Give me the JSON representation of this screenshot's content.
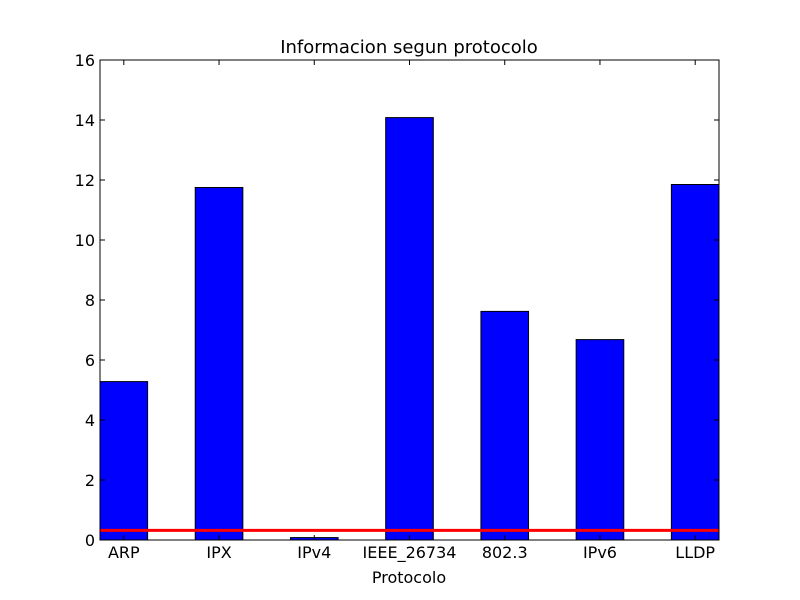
{
  "chart_data": {
    "type": "bar",
    "title": "Informacion segun protocolo",
    "xlabel": "Protocolo",
    "ylabel": "",
    "categories": [
      "ARP",
      "IPX",
      "IPv4",
      "IEEE_26734",
      "802.3",
      "IPv6",
      "LLDP"
    ],
    "values": [
      5.28,
      11.75,
      0.08,
      14.08,
      7.62,
      6.68,
      11.85
    ],
    "ylim": [
      0,
      16
    ],
    "yticks": [
      "0",
      "2",
      "4",
      "6",
      "8",
      "10",
      "12",
      "14",
      "16"
    ],
    "reference_line": {
      "value": 0.32,
      "color": "#ff0000"
    },
    "bar_color": "#0000ff",
    "grid": false
  }
}
